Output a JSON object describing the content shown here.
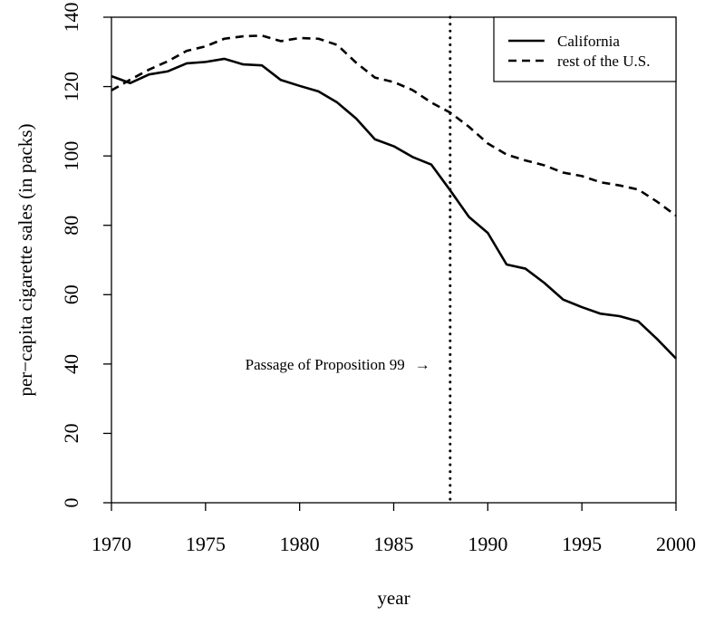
{
  "chart_data": {
    "type": "line",
    "title": "",
    "xlabel": "year",
    "ylabel": "per−capita cigarette sales (in packs)",
    "xlim": [
      1970,
      2000
    ],
    "ylim": [
      0,
      140
    ],
    "x_ticks": [
      1970,
      1975,
      1980,
      1985,
      1990,
      1995,
      2000
    ],
    "y_ticks": [
      0,
      20,
      40,
      60,
      80,
      100,
      120,
      140
    ],
    "x_tick_labels": [
      "1970",
      "1975",
      "1980",
      "1985",
      "1990",
      "1995",
      "2000"
    ],
    "y_tick_labels": [
      "0",
      "20",
      "40",
      "60",
      "80",
      "100",
      "120",
      "140"
    ],
    "grid": false,
    "legend_position": "top-right",
    "x": [
      1970,
      1971,
      1972,
      1973,
      1974,
      1975,
      1976,
      1977,
      1978,
      1979,
      1980,
      1981,
      1982,
      1983,
      1984,
      1985,
      1986,
      1987,
      1988,
      1989,
      1990,
      1991,
      1992,
      1993,
      1994,
      1995,
      1996,
      1997,
      1998,
      1999,
      2000
    ],
    "series": [
      {
        "name": "California",
        "line_style": "solid",
        "color": "#000000",
        "values": [
          123.0,
          121.0,
          123.5,
          124.4,
          126.7,
          127.1,
          128.0,
          126.4,
          126.1,
          121.9,
          120.2,
          118.6,
          115.4,
          110.8,
          104.8,
          102.8,
          99.7,
          97.5,
          90.1,
          82.4,
          77.8,
          68.7,
          67.5,
          63.4,
          58.6,
          56.4,
          54.5,
          53.8,
          52.3,
          47.2,
          41.6
        ]
      },
      {
        "name": "rest of the U.S.",
        "line_style": "dashed",
        "color": "#000000",
        "values": [
          118.9,
          122.0,
          124.9,
          127.3,
          130.3,
          131.6,
          133.8,
          134.5,
          134.7,
          133.1,
          134.0,
          133.8,
          132.0,
          126.9,
          122.6,
          121.3,
          119.0,
          115.4,
          112.5,
          108.4,
          103.6,
          100.4,
          98.7,
          97.3,
          95.2,
          94.2,
          92.4,
          91.5,
          90.3,
          86.8,
          82.8
        ]
      }
    ],
    "vline": {
      "x": 1988,
      "line_style": "dotted"
    },
    "annotation": {
      "text": "Passage of Proposition 99",
      "x": 1988,
      "y": 40,
      "arrow": "→"
    }
  }
}
